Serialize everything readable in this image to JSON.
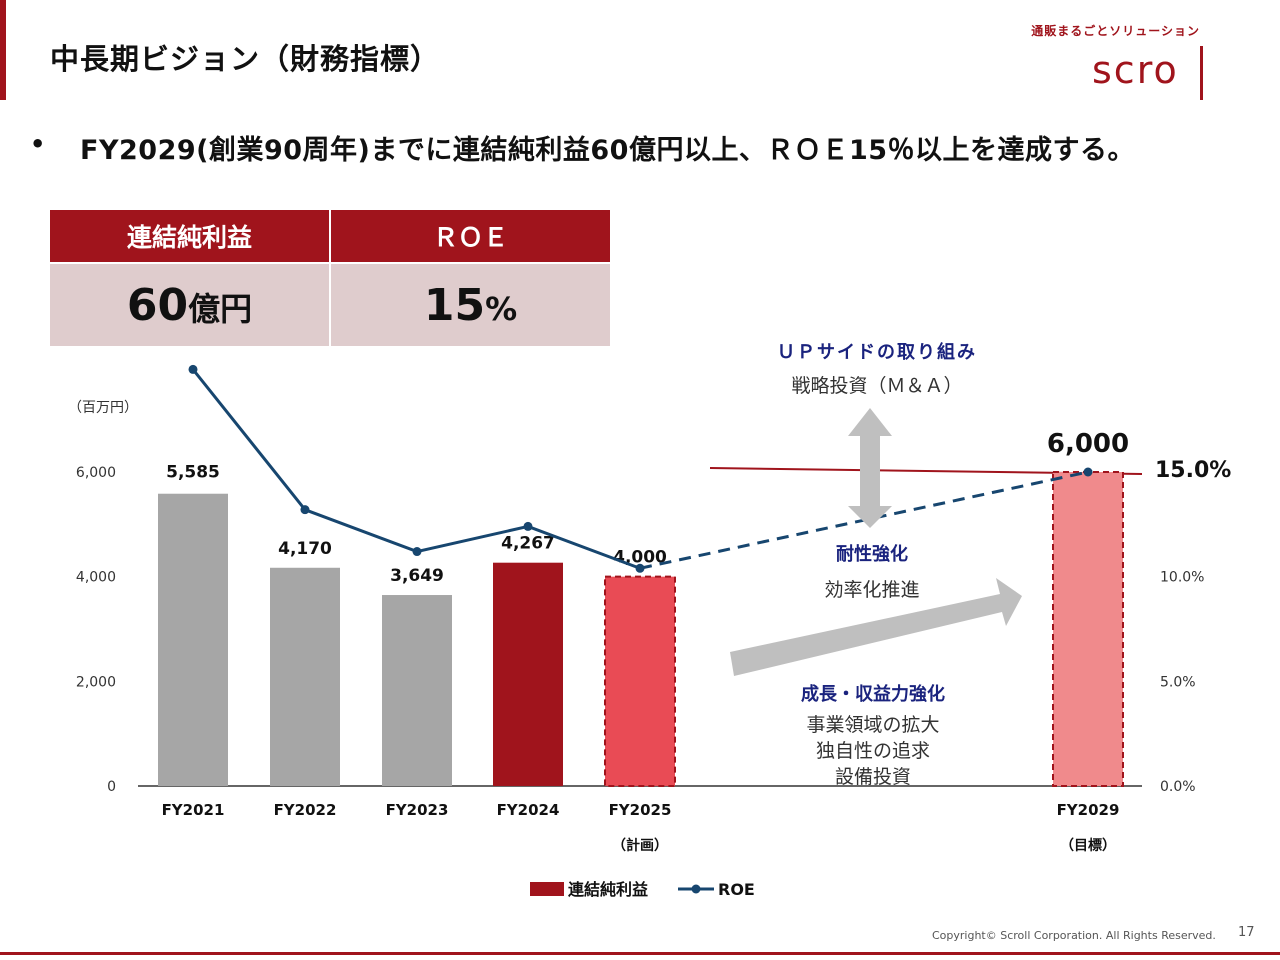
{
  "header": {
    "title": "中長期ビジョン（財務指標）",
    "logo_tagline": "通販まるごとソリューション",
    "logo_word": "scro",
    "page_number": "17",
    "copyright": "Copyright© Scroll Corporation. All Rights Reserved."
  },
  "bullet": {
    "dot": "•",
    "text": "FY2029(創業90周年)までに連結純利益60億円以上、ＲＯＥ15％以上を達成する。"
  },
  "kpi": {
    "headers": [
      "連結純利益",
      "ＲＯＥ"
    ],
    "values": [
      {
        "num": "60",
        "unit": "億円"
      },
      {
        "num": "15",
        "unit": "%"
      }
    ]
  },
  "colors": {
    "brand_red": "#a0141c",
    "plan_red": "#e94b55",
    "target_pink": "#f08a8c",
    "actual_gray": "#a6a6a6",
    "roe_line": "#17466f",
    "navy_label": "#1a237e"
  },
  "chart_data": {
    "type": "bar",
    "unit_label": "（百万円）",
    "categories": [
      {
        "label": "FY2021",
        "sub": ""
      },
      {
        "label": "FY2022",
        "sub": ""
      },
      {
        "label": "FY2023",
        "sub": ""
      },
      {
        "label": "FY2024",
        "sub": ""
      },
      {
        "label": "FY2025",
        "sub": "（計画）"
      },
      {
        "label": "FY2029",
        "sub": "（目標）"
      }
    ],
    "series": [
      {
        "name": "連結純利益",
        "values": [
          5585,
          4170,
          3649,
          4267,
          4000,
          6000
        ],
        "labels": [
          "5,585",
          "4,170",
          "3,649",
          "4,267",
          "4,000",
          "6,000"
        ],
        "styles": [
          "actual",
          "actual",
          "actual",
          "current",
          "plan",
          "target"
        ]
      },
      {
        "name": "ROE",
        "values": [
          19.9,
          13.2,
          11.2,
          12.4,
          10.4,
          15.0
        ],
        "labels": [
          "",
          "",
          "",
          "",
          "",
          "15.0%"
        ],
        "projection_from_index": 4
      }
    ],
    "y_left": {
      "min": 0,
      "max": 6000,
      "ticks": [
        "0",
        "2,000",
        "4,000",
        "6,000"
      ],
      "tick_values": [
        0,
        2000,
        4000,
        6000
      ]
    },
    "y_right": {
      "min": 0,
      "max": 15,
      "ticks": [
        "0.0%",
        "5.0%",
        "10.0%"
      ],
      "tick_values": [
        0,
        5,
        10
      ]
    },
    "target_line_value": 6000,
    "legend": {
      "placement": "bottom",
      "items": [
        "連結純利益",
        "ROE"
      ]
    },
    "annotations": {
      "upside_title": "ＵＰサイドの取り組み",
      "upside_sub": "戦略投資（Ｍ＆Ａ）",
      "resilience_title": "耐性強化",
      "resilience_sub": "効率化推進",
      "growth_title": "成長・収益力強化",
      "growth_lines": [
        "事業領域の拡大",
        "独自性の追求",
        "設備投資"
      ]
    }
  }
}
